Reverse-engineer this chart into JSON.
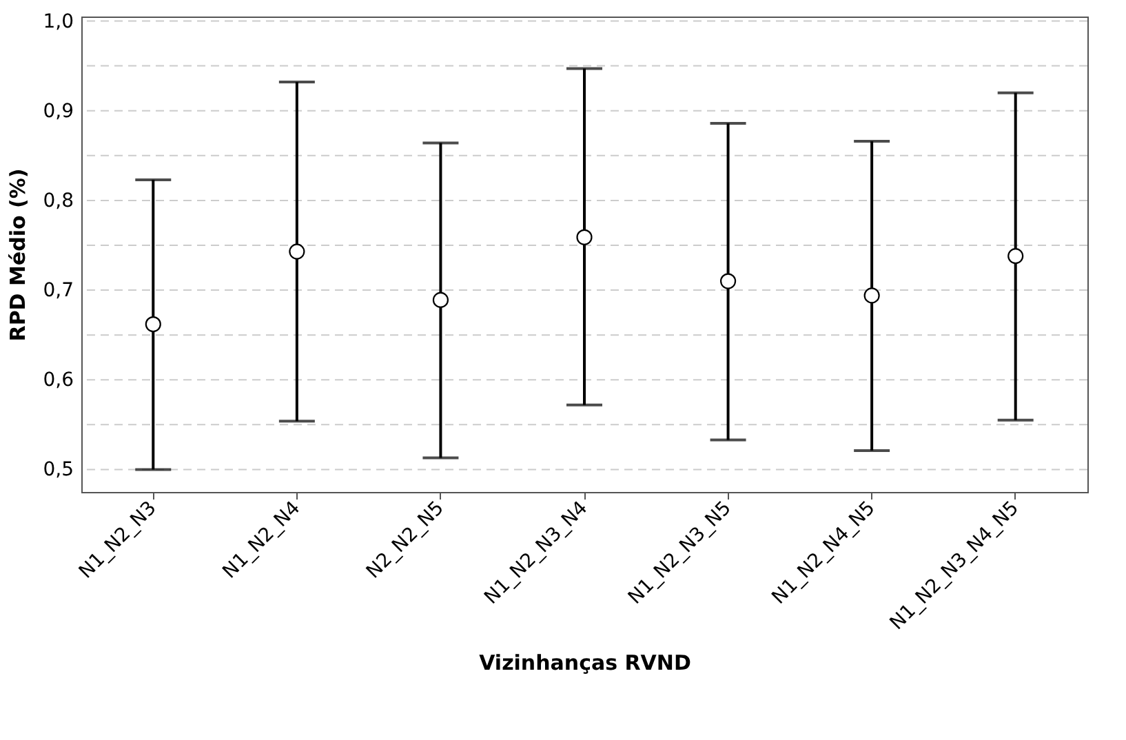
{
  "chart_data": {
    "type": "scatter",
    "xlabel": "Vizinhanças RVND",
    "ylabel": "RPD Médio (%)",
    "categories": [
      "N1_N2_N3",
      "N1_N2_N4",
      "N2_N2_N5",
      "N1_N2_N3_N4",
      "N1_N2_N3_N5",
      "N1_N2_N4_N5",
      "N1_N2_N3_N4_N5"
    ],
    "values": [
      0.662,
      0.743,
      0.689,
      0.759,
      0.71,
      0.694,
      0.738
    ],
    "errors": [
      [
        0.5,
        0.823
      ],
      [
        0.554,
        0.932
      ],
      [
        0.513,
        0.864
      ],
      [
        0.572,
        0.947
      ],
      [
        0.533,
        0.886
      ],
      [
        0.521,
        0.866
      ],
      [
        0.555,
        0.92
      ]
    ],
    "color": "#000000",
    "marker": "circle",
    "grid": "y",
    "ylim": [
      0.475,
      1.005
    ],
    "yticks": [
      {
        "value": 0.5,
        "label": "0,5"
      },
      {
        "value": 0.55,
        "label": null
      },
      {
        "value": 0.6,
        "label": "0,6"
      },
      {
        "value": 0.65,
        "label": null
      },
      {
        "value": 0.7,
        "label": "0,7"
      },
      {
        "value": 0.75,
        "label": null
      },
      {
        "value": 0.8,
        "label": "0,8"
      },
      {
        "value": 0.85,
        "label": null
      },
      {
        "value": 0.9,
        "label": "0,9"
      },
      {
        "value": 0.95,
        "label": null
      },
      {
        "value": 1.0,
        "label": "1,0"
      }
    ]
  }
}
